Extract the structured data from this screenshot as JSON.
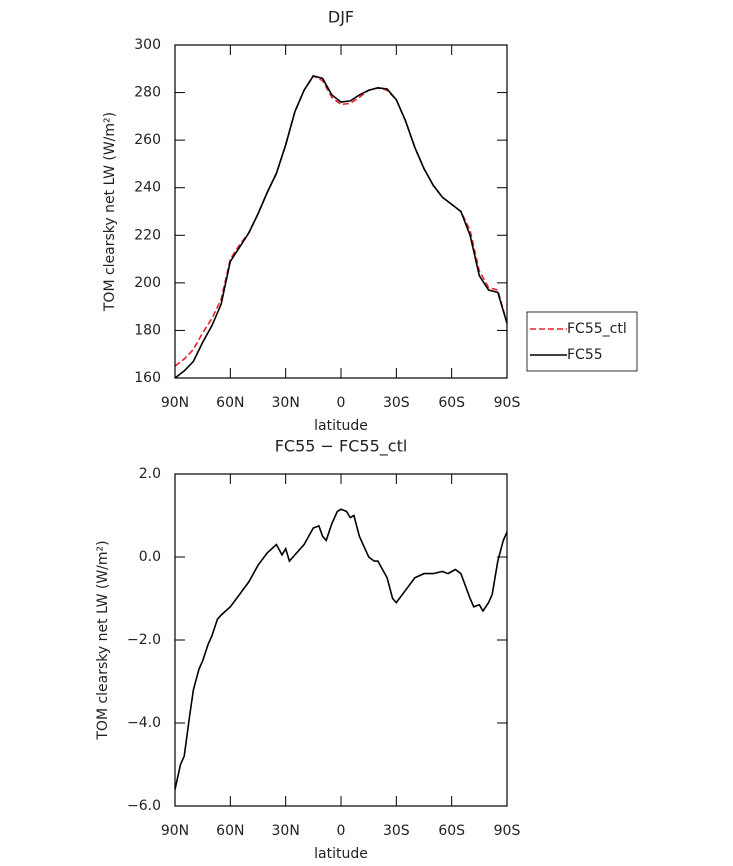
{
  "chart_data": [
    {
      "type": "line",
      "title": "DJF",
      "xlabel": "latitude",
      "ylabel": "TOM clearsky net LW (W/m²)",
      "x": [
        90,
        85,
        80,
        75,
        70,
        65,
        60,
        55,
        50,
        45,
        40,
        35,
        30,
        25,
        20,
        15,
        10,
        5,
        0,
        -5,
        -10,
        -15,
        -20,
        -25,
        -30,
        -35,
        -40,
        -45,
        -50,
        -55,
        -60,
        -65,
        -70,
        -75,
        -80,
        -85,
        -90
      ],
      "series": [
        {
          "name": "FC55_ctl",
          "color": "#e8202a",
          "dash": true,
          "values": [
            165,
            168,
            172,
            179,
            185,
            193,
            210,
            216,
            221,
            229,
            238,
            246,
            258,
            272,
            281,
            287,
            285,
            278,
            275,
            275.5,
            278,
            281,
            282,
            281,
            277,
            268,
            257,
            248,
            241,
            236,
            233,
            230,
            222,
            205,
            198,
            197,
            183
          ]
        },
        {
          "name": "FC55",
          "color": "#000000",
          "dash": false,
          "values": [
            160,
            163,
            167,
            175,
            182,
            191,
            209,
            215,
            221,
            229,
            238,
            246,
            258,
            272,
            281,
            287,
            286,
            279,
            276,
            276.5,
            279,
            281,
            282,
            281.5,
            277,
            268,
            257,
            248,
            241,
            236,
            233,
            230,
            220,
            203,
            197,
            196,
            183
          ]
        }
      ],
      "xlim": [
        90,
        -90
      ],
      "xticks": [
        {
          "value": 90,
          "label": "90N"
        },
        {
          "value": 60,
          "label": "60N"
        },
        {
          "value": 30,
          "label": "30N"
        },
        0,
        {
          "value": -30,
          "label": "30S"
        },
        {
          "value": -60,
          "label": "60S"
        },
        {
          "value": -90,
          "label": "90S"
        }
      ],
      "ylim": [
        160,
        300
      ],
      "yticks": [
        160,
        180,
        200,
        220,
        240,
        260,
        280,
        300
      ],
      "legend": "outside-right"
    },
    {
      "type": "line",
      "title": "FC55 − FC55_ctl",
      "xlabel": "latitude",
      "ylabel": "TOM clearsky net LW (W/m²)",
      "x": [
        90,
        87,
        85,
        82,
        80,
        77,
        75,
        72,
        70,
        67,
        65,
        60,
        55,
        50,
        45,
        40,
        35,
        32,
        30,
        28,
        25,
        20,
        15,
        12,
        10,
        8,
        5,
        2,
        0,
        -3,
        -5,
        -7,
        -10,
        -15,
        -18,
        -20,
        -25,
        -28,
        -30,
        -35,
        -40,
        -45,
        -50,
        -55,
        -58,
        -62,
        -65,
        -70,
        -72,
        -75,
        -77,
        -80,
        -82,
        -85,
        -88,
        -90
      ],
      "series": [
        {
          "name": "FC55 − FC55_ctl",
          "color": "#000000",
          "dash": false,
          "values": [
            -5.6,
            -5.0,
            -4.8,
            -3.8,
            -3.2,
            -2.7,
            -2.5,
            -2.1,
            -1.9,
            -1.5,
            -1.4,
            -1.2,
            -0.9,
            -0.6,
            -0.2,
            0.1,
            0.3,
            0.05,
            0.2,
            -0.1,
            0.05,
            0.3,
            0.7,
            0.75,
            0.5,
            0.4,
            0.8,
            1.1,
            1.15,
            1.1,
            0.95,
            1.0,
            0.5,
            0.0,
            -0.1,
            -0.1,
            -0.5,
            -1.0,
            -1.1,
            -0.8,
            -0.5,
            -0.4,
            -0.4,
            -0.35,
            -0.4,
            -0.3,
            -0.4,
            -1.0,
            -1.2,
            -1.15,
            -1.3,
            -1.1,
            -0.9,
            -0.1,
            0.4,
            0.6
          ]
        }
      ],
      "xlim": [
        90,
        -90
      ],
      "xticks": [
        {
          "value": 90,
          "label": "90N"
        },
        {
          "value": 60,
          "label": "60N"
        },
        {
          "value": 30,
          "label": "30N"
        },
        0,
        {
          "value": -30,
          "label": "30S"
        },
        {
          "value": -60,
          "label": "60S"
        },
        {
          "value": -90,
          "label": "90S"
        }
      ],
      "ylim": [
        -6,
        2
      ],
      "yticks": [
        {
          "value": -6,
          "label": "−6.0"
        },
        {
          "value": -4,
          "label": "−4.0"
        },
        {
          "value": -2,
          "label": "−2.0"
        },
        {
          "value": 0,
          "label": "0.0"
        },
        {
          "value": 2,
          "label": "2.0"
        }
      ]
    }
  ]
}
